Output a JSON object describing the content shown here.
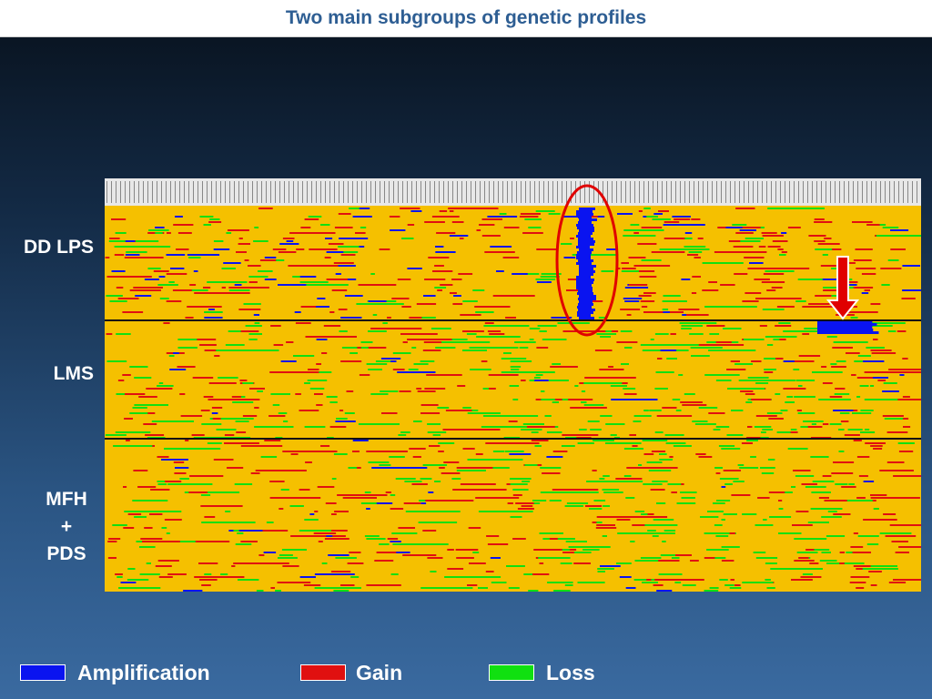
{
  "header": {
    "title": "Two main subgroups of genetic profiles"
  },
  "groups": [
    {
      "lines": [
        "DD LPS"
      ]
    },
    {
      "lines": [
        "LMS"
      ]
    },
    {
      "lines": [
        "MFH",
        "+",
        "PDS"
      ]
    }
  ],
  "legend": [
    {
      "label": "Amplification",
      "color": "#0a14f0"
    },
    {
      "label": "Gain",
      "color": "#e01010"
    },
    {
      "label": "Loss",
      "color": "#10e010"
    }
  ]
}
